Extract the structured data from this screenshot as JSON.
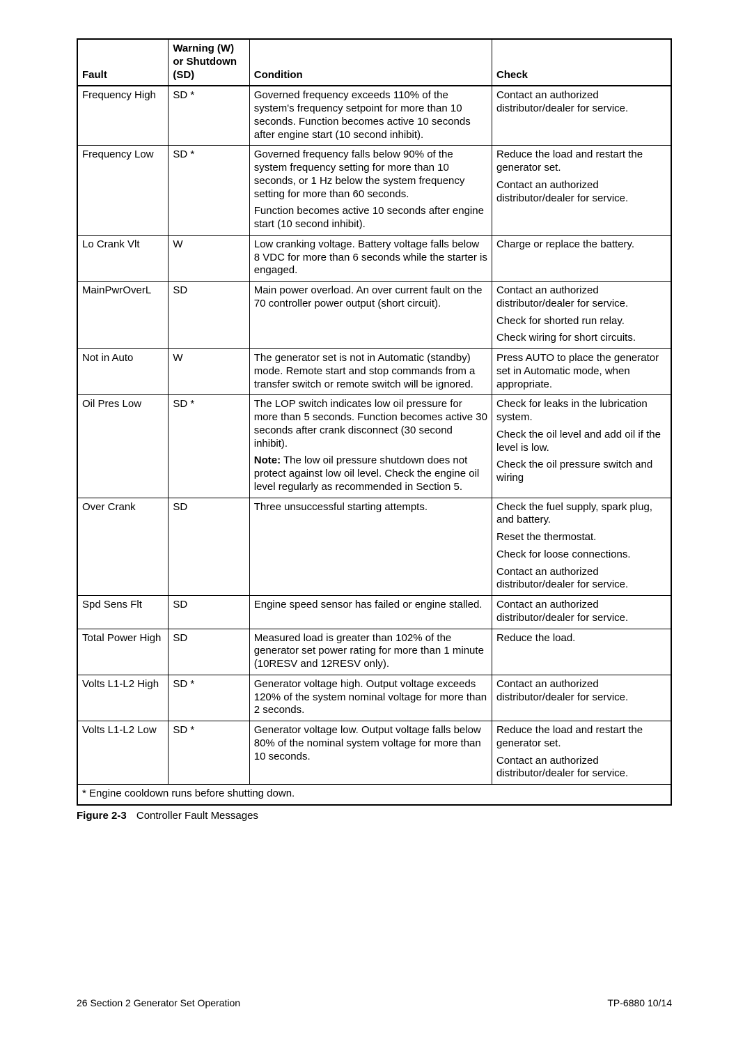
{
  "table": {
    "columns": {
      "fault": "Fault",
      "type": "Warning (W) or Shutdown (SD)",
      "condition": "Condition",
      "check": "Check"
    },
    "rows": [
      {
        "fault": "Frequency High",
        "type": "SD *",
        "condition": [
          "Governed frequency exceeds 110% of the system's frequency setpoint for more than 10 seconds. Function becomes active 10 seconds after engine start (10 second inhibit)."
        ],
        "check": [
          "Contact an authorized distributor/dealer for service."
        ]
      },
      {
        "fault": "Frequency Low",
        "type": "SD *",
        "condition": [
          "Governed frequency falls below 90% of the system frequency setting for more than 10 seconds, or 1 Hz below the system frequency setting for more than 60 seconds.",
          "Function becomes active 10 seconds after engine start (10 second inhibit)."
        ],
        "check": [
          "Reduce the load and restart the generator set.",
          "Contact an authorized distributor/dealer for service."
        ]
      },
      {
        "fault": "Lo Crank Vlt",
        "type": "W",
        "condition": [
          "Low cranking voltage. Battery voltage falls below 8 VDC for more than 6 seconds while the starter is engaged."
        ],
        "check": [
          "Charge or replace the battery."
        ]
      },
      {
        "fault": "MainPwrOverL",
        "type": "SD",
        "condition": [
          "Main power overload. An over current fault on the 70 controller power output (short circuit)."
        ],
        "check": [
          "Contact an authorized distributor/dealer for service.",
          "Check for shorted run relay.",
          "Check wiring for short circuits."
        ]
      },
      {
        "fault": "Not in Auto",
        "type": "W",
        "condition": [
          "The generator set is not in Automatic (standby) mode. Remote start and stop commands from a transfer switch or remote switch will be ignored."
        ],
        "check": [
          "Press AUTO to place the generator set in Automatic mode, when appropriate."
        ]
      },
      {
        "fault": "Oil Pres Low",
        "type": "SD *",
        "condition_special": {
          "plain": "The LOP switch indicates low oil pressure for more than 5 seconds. Function becomes active 30 seconds after crank disconnect (30 second inhibit).",
          "note_label": "Note:",
          "note_text": " The low oil pressure shutdown does not protect against low oil level. Check the engine oil level regularly as recommended in Section 5."
        },
        "check": [
          "Check for leaks in the lubrication system.",
          "Check the oil level and add oil if the level is low.",
          "Check the oil pressure switch and wiring"
        ]
      },
      {
        "fault": "Over Crank",
        "type": "SD",
        "condition": [
          "Three unsuccessful starting attempts."
        ],
        "check": [
          "Check the fuel supply, spark plug, and battery.",
          "Reset the thermostat.",
          "Check for loose connections.",
          "Contact an authorized distributor/dealer for service."
        ]
      },
      {
        "fault": "Spd Sens Flt",
        "type": "SD",
        "condition": [
          "Engine speed sensor has failed or engine stalled."
        ],
        "check": [
          "Contact an authorized distributor/dealer for service."
        ]
      },
      {
        "fault": "Total Power High",
        "type": "SD",
        "condition": [
          "Measured load is greater than 102% of the generator set power rating for more than 1 minute (10RESV and 12RESV only)."
        ],
        "check": [
          "Reduce the load."
        ]
      },
      {
        "fault": "Volts L1-L2 High",
        "type": "SD *",
        "condition": [
          "Generator voltage high. Output voltage exceeds 120% of the system nominal voltage for more than 2 seconds."
        ],
        "check": [
          "Contact an authorized distributor/dealer for service."
        ]
      },
      {
        "fault": "Volts L1-L2 Low",
        "type": "SD *",
        "condition": [
          "Generator voltage low. Output voltage falls below 80% of the nominal system voltage for more than 10 seconds."
        ],
        "check": [
          "Reduce the load and restart the generator set.",
          "Contact an authorized distributor/dealer for service."
        ]
      }
    ],
    "footnote": "*  Engine cooldown runs before shutting down."
  },
  "caption": {
    "label": "Figure 2-3",
    "text": "Controller Fault Messages"
  },
  "footer": {
    "left": "26    Section 2  Generator Set Operation",
    "right": "TP-6880   10/14"
  }
}
